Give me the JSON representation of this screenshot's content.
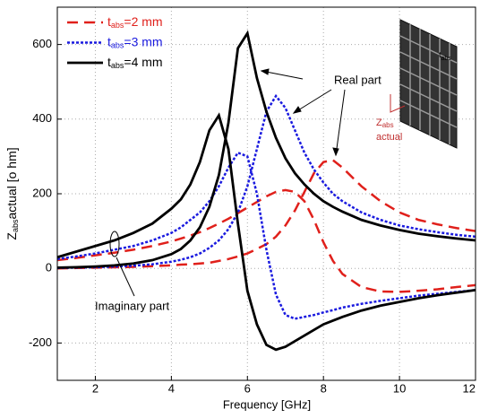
{
  "chart_data": {
    "type": "line",
    "xlabel": "Frequency [GHz]",
    "ylabel": {
      "main": "Z",
      "sub": "abs",
      "rest": "actual [o hm]"
    },
    "xlim": [
      1,
      12
    ],
    "ylim": [
      -300,
      700
    ],
    "xticks": [
      2,
      4,
      6,
      8,
      10,
      12
    ],
    "yticks": [
      -200,
      0,
      200,
      400,
      600
    ],
    "grid": true,
    "legend": "upper left",
    "x": [
      1,
      1.5,
      2,
      2.5,
      3,
      3.5,
      4,
      4.25,
      4.5,
      4.75,
      5,
      5.25,
      5.5,
      5.75,
      6,
      6.25,
      6.5,
      6.75,
      7,
      7.25,
      7.5,
      7.75,
      8,
      8.25,
      8.5,
      9,
      9.5,
      10,
      10.5,
      11,
      11.5,
      12
    ],
    "series": [
      {
        "name": {
          "main": "t",
          "sub": "abs",
          "rest": "=2 mm"
        },
        "color": "#e0201b",
        "style": "dashed",
        "real": [
          0,
          1,
          2,
          3,
          4,
          6,
          8,
          10,
          11,
          13,
          15,
          20,
          25,
          32,
          40,
          52,
          65,
          85,
          115,
          155,
          205,
          255,
          285,
          290,
          270,
          220,
          180,
          150,
          130,
          118,
          108,
          100
        ],
        "imag": [
          22,
          28,
          35,
          42,
          50,
          60,
          72,
          80,
          88,
          97,
          108,
          120,
          133,
          148,
          163,
          178,
          193,
          205,
          210,
          205,
          180,
          130,
          70,
          20,
          -15,
          -50,
          -62,
          -63,
          -60,
          -56,
          -50,
          -45
        ]
      },
      {
        "name": {
          "main": "t",
          "sub": "abs",
          "rest": "=3 mm"
        },
        "color": "#1a1adf",
        "style": "dotted",
        "real": [
          1,
          2,
          3,
          5,
          7,
          11,
          18,
          23,
          30,
          40,
          55,
          75,
          105,
          150,
          220,
          320,
          420,
          462,
          430,
          370,
          310,
          265,
          230,
          200,
          180,
          150,
          130,
          115,
          105,
          97,
          90,
          85
        ],
        "imag": [
          25,
          32,
          40,
          50,
          60,
          75,
          95,
          110,
          130,
          150,
          180,
          220,
          270,
          310,
          300,
          200,
          50,
          -70,
          -125,
          -135,
          -130,
          -125,
          -118,
          -112,
          -105,
          -95,
          -87,
          -80,
          -73,
          -68,
          -63,
          -58
        ]
      },
      {
        "name": {
          "main": "t",
          "sub": "abs",
          "rest": "=4 mm"
        },
        "color": "#000000",
        "style": "solid",
        "real": [
          2,
          3,
          5,
          8,
          13,
          22,
          38,
          52,
          75,
          110,
          165,
          250,
          390,
          590,
          630,
          510,
          420,
          350,
          295,
          255,
          225,
          200,
          180,
          165,
          152,
          130,
          115,
          103,
          93,
          86,
          80,
          75
        ],
        "imag": [
          30,
          45,
          60,
          75,
          95,
          120,
          160,
          185,
          225,
          285,
          370,
          410,
          320,
          120,
          -60,
          -150,
          -205,
          -218,
          -210,
          -195,
          -180,
          -165,
          -150,
          -140,
          -130,
          -113,
          -100,
          -90,
          -80,
          -72,
          -65,
          -58
        ]
      }
    ],
    "annotations": {
      "real": "Real part",
      "imag": "Imaginary part"
    },
    "inset": {
      "t": {
        "main": "t",
        "sub": "abs"
      },
      "z": {
        "main": "Z",
        "sub": "abs",
        "rest": "actual"
      }
    }
  }
}
